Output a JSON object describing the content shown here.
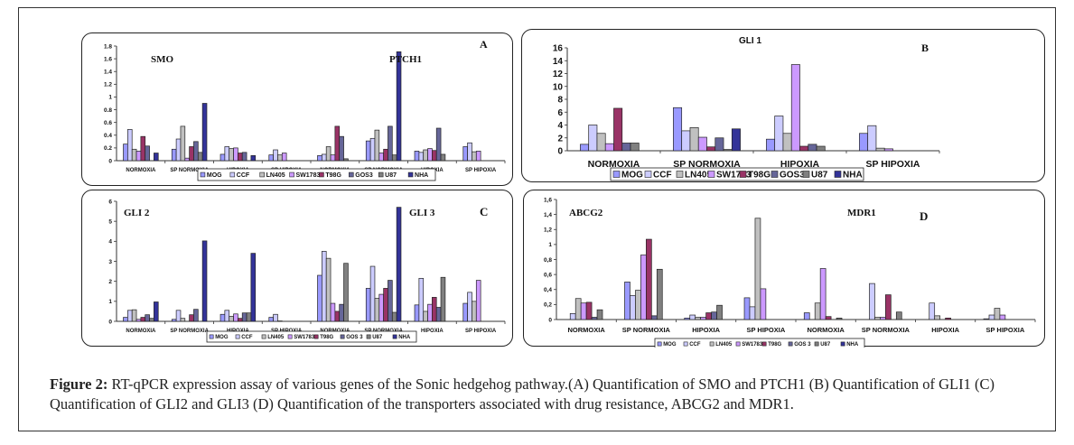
{
  "caption": {
    "label": "Figure 2:",
    "text": " RT-qPCR expression assay of various genes of the Sonic hedgehog pathway.(A) Quantification of SMO and PTCH1 (B) Quantification of GLI1 (C) Quantification of GLI2 and GLI3 (D) Quantification of the transporters associated with drug resistance, ABCG2 and MDR1."
  },
  "colors": {
    "MOG": "#9999ff",
    "CCF": "#ccccff",
    "LN405": "#c0c0c0",
    "SW1783": "#cc99ff",
    "T98G": "#993366",
    "GOS3": "#666699",
    "U87": "#808080",
    "NHA": "#333399"
  },
  "chart_data": [
    {
      "panel": "A",
      "type": "bar",
      "title_left": "SMO",
      "title_right": "PTCH1",
      "ylim": [
        0,
        1.8
      ],
      "yticks": [
        "0",
        "0.2",
        "0.4",
        "0.6",
        "0.8",
        "1",
        "1.2",
        "1.4",
        "1.6",
        "1.8"
      ],
      "categories": [
        "NORMOXIA",
        "SP NORMOXIA",
        "HIPOXIA",
        "SP HIPOXIA",
        "NORMOXIA",
        "SP NORMOXIA",
        "HIPOXIA",
        "SP HIPOXIA"
      ],
      "legend": [
        "MOG",
        "CCF",
        "LN405",
        "SW1783",
        "T98G",
        "GOS3",
        "U87",
        "NHA"
      ],
      "series": [
        {
          "name": "MOG",
          "values": [
            0.26,
            0.18,
            0.1,
            0.09,
            0.08,
            0.31,
            0.15,
            0.22
          ]
        },
        {
          "name": "CCF",
          "values": [
            0.49,
            0.34,
            0.22,
            0.17,
            0.1,
            0.35,
            0.13,
            0.28
          ]
        },
        {
          "name": "LN405",
          "values": [
            0.18,
            0.54,
            0.19,
            0.09,
            0.22,
            0.48,
            0.17,
            0.14
          ]
        },
        {
          "name": "SW1783",
          "values": [
            0.15,
            0.04,
            0.2,
            0.12,
            0.09,
            0.12,
            0.19,
            0.15
          ]
        },
        {
          "name": "T98G",
          "values": [
            0.38,
            0.22,
            0.12,
            0.0,
            0.54,
            0.18,
            0.16,
            0.0
          ]
        },
        {
          "name": "GOS3",
          "values": [
            0.23,
            0.3,
            0.13,
            0.0,
            0.38,
            0.54,
            0.51,
            0.0
          ]
        },
        {
          "name": "U87",
          "values": [
            0.0,
            0.13,
            0.0,
            0.0,
            0.03,
            0.09,
            0.1,
            0.0
          ]
        },
        {
          "name": "NHA",
          "values": [
            0.12,
            0.9,
            0.08,
            0.0,
            0.0,
            1.71,
            0.0,
            0.0
          ]
        }
      ]
    },
    {
      "panel": "B",
      "type": "bar",
      "title_center": "GLI 1",
      "ylim": [
        0,
        16
      ],
      "yticks": [
        "0",
        "2",
        "4",
        "6",
        "8",
        "10",
        "12",
        "14",
        "16"
      ],
      "categories": [
        "NORMOXIA",
        "SP NORMOXIA",
        "HIPOXIA",
        "SP HIPOXIA"
      ],
      "legend": [
        "MOG",
        "CCF",
        "LN405",
        "SW1783",
        "T98G",
        "GOS3",
        "U87",
        "NHA"
      ],
      "series": [
        {
          "name": "MOG",
          "values": [
            1.0,
            6.7,
            1.8,
            2.7
          ]
        },
        {
          "name": "CCF",
          "values": [
            4.0,
            3.1,
            5.4,
            3.9
          ]
        },
        {
          "name": "LN405",
          "values": [
            2.7,
            3.6,
            2.7,
            0.4
          ]
        },
        {
          "name": "SW1783",
          "values": [
            1.1,
            2.1,
            13.4,
            0.3
          ]
        },
        {
          "name": "T98G",
          "values": [
            6.6,
            0.6,
            0.7,
            0.0
          ]
        },
        {
          "name": "GOS3",
          "values": [
            1.2,
            2.0,
            1.0,
            0.0
          ]
        },
        {
          "name": "U87",
          "values": [
            1.2,
            0.2,
            0.7,
            0.0
          ]
        },
        {
          "name": "NHA",
          "values": [
            0.0,
            3.4,
            0.0,
            0.0
          ]
        }
      ]
    },
    {
      "panel": "C",
      "type": "bar",
      "title_left": "GLI 2",
      "title_right": "GLI 3",
      "ylim": [
        0,
        6
      ],
      "yticks": [
        "0",
        "1",
        "2",
        "3",
        "4",
        "5",
        "6"
      ],
      "categories": [
        "NORMOXIA",
        "SP NORMOXIA",
        "HIPOXIA",
        "SP HIPOXIA",
        "NORMOXIA",
        "SP NORMOXIA",
        "HIPOXIA",
        "SP HIPOXIA"
      ],
      "legend": [
        "MOG",
        "CCF",
        "LN405",
        "SW1783",
        "T98G",
        "GOS 3",
        "U87",
        "NHA"
      ],
      "series": [
        {
          "name": "MOG",
          "values": [
            0.2,
            0.1,
            0.35,
            0.2,
            2.3,
            1.65,
            0.82,
            0.9
          ]
        },
        {
          "name": "CCF",
          "values": [
            0.55,
            0.55,
            0.55,
            0.35,
            3.5,
            2.75,
            2.15,
            1.45
          ]
        },
        {
          "name": "LN405",
          "values": [
            0.58,
            0.15,
            0.25,
            0.02,
            3.15,
            1.15,
            0.5,
            1.0
          ]
        },
        {
          "name": "SW1783",
          "values": [
            0.1,
            0.0,
            0.37,
            0.0,
            0.9,
            1.35,
            0.85,
            2.05
          ]
        },
        {
          "name": "T98G",
          "values": [
            0.2,
            0.33,
            0.15,
            0.0,
            0.5,
            1.65,
            1.2,
            0.0
          ]
        },
        {
          "name": "GOS 3",
          "values": [
            0.33,
            0.6,
            0.42,
            0.0,
            0.85,
            2.05,
            0.7,
            0.0
          ]
        },
        {
          "name": "U87",
          "values": [
            0.15,
            0.0,
            0.42,
            0.0,
            2.9,
            0.45,
            2.2,
            0.0
          ]
        },
        {
          "name": "NHA",
          "values": [
            0.97,
            4.02,
            3.4,
            0.0,
            0.0,
            5.7,
            0.0,
            0.0
          ]
        }
      ]
    },
    {
      "panel": "D",
      "type": "bar",
      "title_left": "ABCG2",
      "title_right": "MDR1",
      "ylim": [
        0,
        1.6
      ],
      "yticks": [
        "0",
        "0,2",
        "0,4",
        "0,6",
        "0,8",
        "1",
        "1,2",
        "1,4",
        "1,6"
      ],
      "categories": [
        "NORMOXIA",
        "SP NORMOXIA",
        "HIPOXIA",
        "SP HIPOXIA",
        "NORMOXIA",
        "SP NORMOXIA",
        "HIPOXIA",
        "SP HIPOXIA"
      ],
      "legend": [
        "MOG",
        "CCF",
        "LN405",
        "SW1783",
        "T98G",
        "GOS 3",
        "U87",
        "NHA"
      ],
      "series": [
        {
          "name": "MOG",
          "values": [
            0.0,
            0.5,
            0.02,
            0.29,
            0.09,
            0.0,
            0.0,
            0.01
          ]
        },
        {
          "name": "CCF",
          "values": [
            0.08,
            0.32,
            0.06,
            0.17,
            0.0,
            0.48,
            0.22,
            0.06
          ]
        },
        {
          "name": "LN405",
          "values": [
            0.28,
            0.39,
            0.03,
            1.35,
            0.22,
            0.03,
            0.05,
            0.15
          ]
        },
        {
          "name": "SW1783",
          "values": [
            0.22,
            0.86,
            0.03,
            0.41,
            0.68,
            0.03,
            0.0,
            0.06
          ]
        },
        {
          "name": "T98G",
          "values": [
            0.23,
            1.07,
            0.09,
            0.0,
            0.04,
            0.33,
            0.02,
            0.0
          ]
        },
        {
          "name": "GOS 3",
          "values": [
            0.03,
            0.05,
            0.1,
            0.0,
            0.0,
            0.0,
            0.0,
            0.0
          ]
        },
        {
          "name": "U87",
          "values": [
            0.13,
            0.67,
            0.19,
            0.0,
            0.02,
            0.1,
            0.0,
            0.0
          ]
        },
        {
          "name": "NHA",
          "values": [
            0.0,
            0.0,
            0.0,
            0.0,
            0.0,
            0.0,
            0.0,
            0.0
          ]
        }
      ]
    }
  ],
  "panel_labels": [
    "A",
    "B",
    "C",
    "D"
  ]
}
